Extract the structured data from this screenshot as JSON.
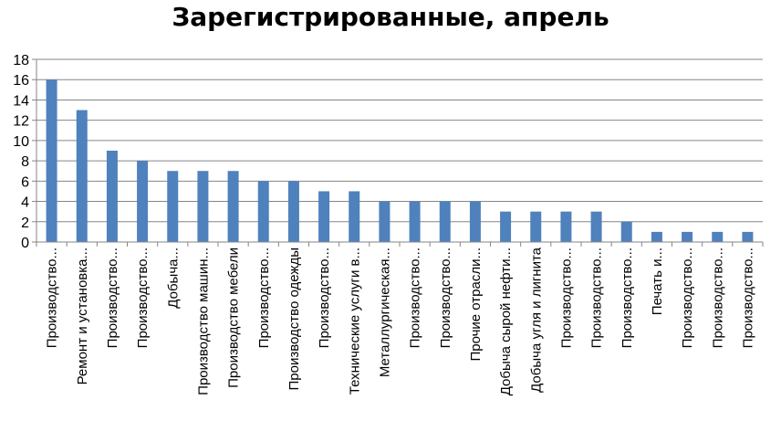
{
  "chart_data": {
    "type": "bar",
    "title": "Зарегистрированные, апрель",
    "xlabel": "",
    "ylabel": "",
    "ylim": [
      0,
      18
    ],
    "yticks": [
      0,
      2,
      4,
      6,
      8,
      10,
      12,
      14,
      16,
      18
    ],
    "grid": true,
    "legend": "none",
    "bar_color": "#4F81BD",
    "categories": [
      "Производство...",
      "Ремонт и установка...",
      "Производство...",
      "Производство...",
      "Добыча...",
      "Производство машин...",
      "Производство мебели",
      "Производство...",
      "Производство одежды",
      "Производство...",
      "Технические услуги в...",
      "Металлургическая...",
      "Производство...",
      "Производство...",
      "Прочие отрасли...",
      "Добыча сырой нефти...",
      "Добыча угля и лигнита",
      "Производство...",
      "Производство...",
      "Производство...",
      "Печать и...",
      "Производство...",
      "Производство...",
      "Производство..."
    ],
    "values": [
      16,
      13,
      9,
      8,
      7,
      7,
      7,
      6,
      6,
      5,
      5,
      4,
      4,
      4,
      4,
      3,
      3,
      3,
      3,
      2,
      1,
      1,
      1,
      1
    ]
  }
}
